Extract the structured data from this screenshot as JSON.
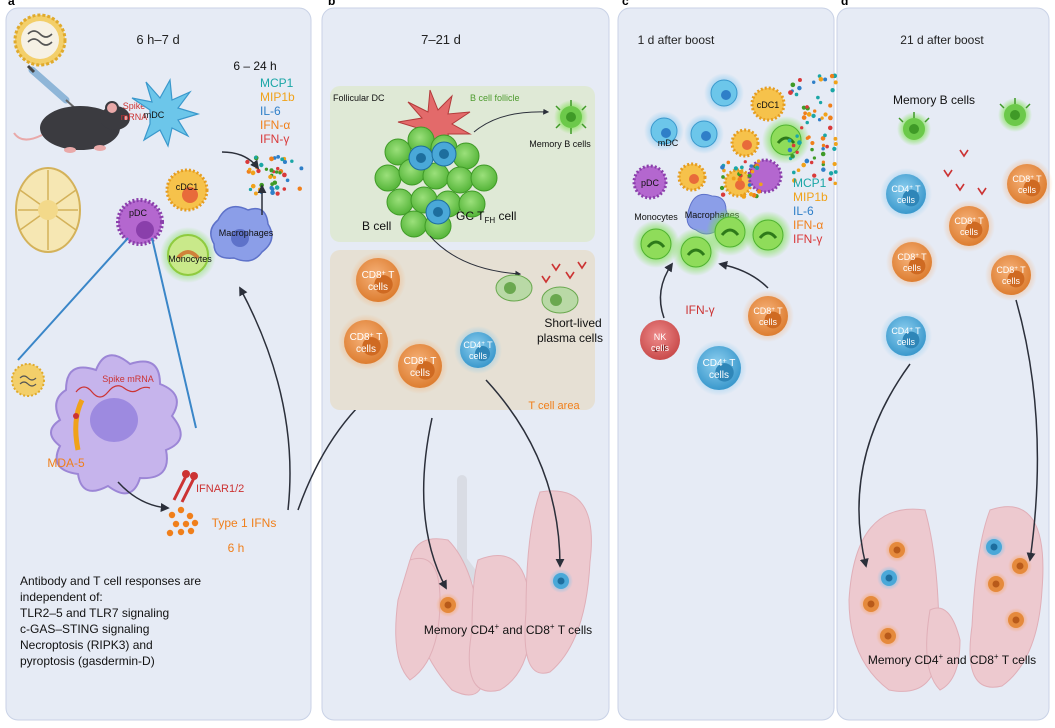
{
  "panels": {
    "a": {
      "letter": "a",
      "title": "6 h–7 d",
      "timepoint_small": "6 – 24 h",
      "cytokines": [
        {
          "label": "MCP1",
          "color": "#1aa6a6"
        },
        {
          "label": "MIP1b",
          "color": "#f0a21a"
        },
        {
          "label": "IL-6",
          "color": "#2f7fc8"
        },
        {
          "label": "IFN-α",
          "color": "#f07f1a"
        },
        {
          "label": "IFN-γ",
          "color": "#d93a3a"
        }
      ],
      "spike_label_line1": "Spike",
      "spike_label_line2": "mRNA",
      "cells": {
        "mdc": "mDC",
        "cdc1": "cDC1",
        "pdc": "pDC",
        "monocytes": "Monocytes",
        "macrophages": "Macrophages"
      },
      "spike_mrna_inset": "Spike mRNA",
      "mda5": "MDA-5",
      "ifnar": "IFNAR1/2",
      "type1_ifns": "Type 1 IFNs",
      "six_h": "6 h",
      "footnote_lines": [
        "Antibody and T cell responses are",
        "independent of:",
        "TLR2–5 and TLR7 signaling",
        "c-GAS–STING signaling",
        "Necroptosis (RIPK3) and",
        "pyroptosis (gasdermin-D)"
      ]
    },
    "b": {
      "letter": "b",
      "title": "7–21 d",
      "follicular_dc": "Follicular DC",
      "b_cell_follicle": "B cell follicle",
      "memory_b": "Memory B cells",
      "b_cell": "B cell",
      "gc_tfh_main": "GC T",
      "gc_tfh_sub": "FH",
      "gc_tfh_tail": " cell",
      "cd8": "CD8",
      "cd4": "CD4",
      "sup": "+",
      "t_suffix": " T",
      "cells_word": "cells",
      "plasma_line1": "Short-lived",
      "plasma_line2": "plasma cells",
      "t_cell_area": "T cell area",
      "memory_t_a": "Memory CD4",
      "memory_t_b": " and CD8",
      "memory_t_c": " T cells"
    },
    "c": {
      "letter": "c",
      "title": "1 d after boost",
      "cytokines": [
        {
          "label": "MCP1",
          "color": "#1aa6a6"
        },
        {
          "label": "MIP1b",
          "color": "#f0a21a"
        },
        {
          "label": "IL-6",
          "color": "#2f7fc8"
        },
        {
          "label": "IFN-α",
          "color": "#f07f1a"
        },
        {
          "label": "IFN-γ",
          "color": "#d93a3a"
        }
      ],
      "cells": {
        "mdc": "mDC",
        "cdc1": "cDC1",
        "pdc": "pDC",
        "monocytes": "Monocytes",
        "macrophages": "Macrophages"
      },
      "ifn_g": "IFN-γ",
      "nk_line1": "NK",
      "nk_line2": "cells"
    },
    "d": {
      "letter": "d",
      "title": "21 d after boost",
      "memory_b": "Memory B cells",
      "memory_t_a": "Memory CD4",
      "memory_t_b": " and CD8",
      "memory_t_c": " T cells"
    }
  },
  "colors": {
    "panel_bg": "#e6ebf5",
    "panel_border": "#c9d2e6",
    "follicle_bg": "#dfe9d6",
    "t_area_bg": "#e6e0d4",
    "orange_cell": "#e58a3c",
    "blue_cell": "#4aa8d8",
    "green_cell": "#6cc94a",
    "lung": "#edc9cf",
    "ifn_orange": "#f07f1a",
    "red_label": "#cc3333"
  }
}
